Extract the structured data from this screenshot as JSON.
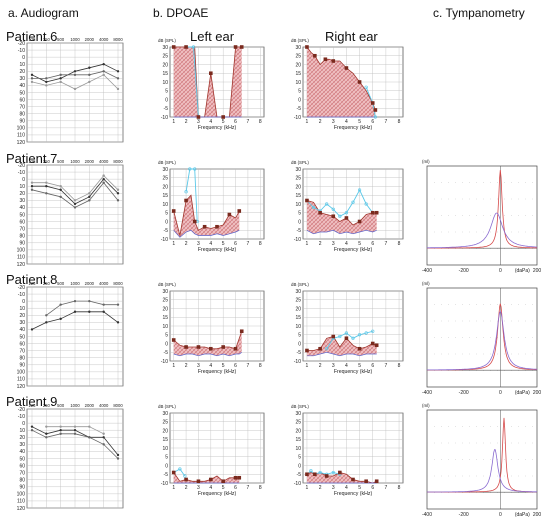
{
  "headers": {
    "audiogram": "a. Audiogram",
    "dpoae": "b. DPOAE",
    "tympanometry": "c. Tympanometry"
  },
  "ear_labels": {
    "left": "Left ear",
    "right": "Right ear"
  },
  "patients": [
    "Patient 6",
    "Patient 7",
    "Patient 8",
    "Patient 9"
  ],
  "colors": {
    "fill": "#e8a9ad",
    "line": "#a0342c",
    "marker": "#7a2a1e",
    "noise": "#5b62c9",
    "cyan": "#5bc8e8",
    "grid": "#bcbcbc",
    "tymp1": "#d64a4a",
    "tymp2": "#8a6bd0"
  },
  "chart_data": [
    {
      "type": "line",
      "name": "audiogram",
      "x_ticks": [
        "125",
        "250",
        "500",
        "1000",
        "2000",
        "4000",
        "8000"
      ],
      "y_ticks": [
        "-20",
        "-10",
        "0",
        "10",
        "20",
        "30",
        "40",
        "50",
        "60",
        "70",
        "80",
        "90",
        "100",
        "110",
        "120"
      ],
      "ylim": [
        -20,
        120
      ],
      "y_inverted": true,
      "patients": [
        {
          "series": [
            {
              "values": [
                25,
                35,
                30,
                20,
                15,
                10,
                20
              ]
            },
            {
              "values": [
                30,
                30,
                25,
                25,
                25,
                20,
                30
              ]
            },
            {
              "values": [
                35,
                40,
                35,
                45,
                35,
                25,
                45
              ]
            }
          ]
        },
        {
          "series": [
            {
              "values": [
                10,
                10,
                15,
                35,
                25,
                0,
                20
              ]
            },
            {
              "values": [
                15,
                20,
                25,
                40,
                30,
                5,
                30
              ]
            },
            {
              "values": [
                5,
                5,
                10,
                30,
                20,
                -5,
                15
              ]
            }
          ]
        },
        {
          "series": [
            {
              "values": [
                40,
                30,
                25,
                15,
                15,
                15,
                30
              ]
            },
            {
              "values": [
                null,
                20,
                5,
                0,
                0,
                5,
                5
              ]
            }
          ]
        },
        {
          "series": [
            {
              "values": [
                5,
                15,
                10,
                10,
                20,
                20,
                45
              ]
            },
            {
              "values": [
                10,
                20,
                15,
                15,
                20,
                30,
                50
              ]
            },
            {
              "values": [
                null,
                5,
                5,
                5,
                5,
                15,
                null
              ]
            }
          ]
        }
      ]
    },
    {
      "type": "area",
      "name": "dpoae",
      "xlabel": "Frequency (kHz)",
      "yunit": "dB (SPL)",
      "x_ticks": [
        1,
        2,
        3,
        4,
        5,
        6,
        7,
        8
      ],
      "y_ticks": [
        30,
        25,
        20,
        15,
        10,
        5,
        0,
        -5,
        -10
      ],
      "ylim": [
        -10,
        30
      ],
      "xlim": [
        0.7,
        8.3
      ],
      "panels": [
        {
          "patient": 0,
          "ear": "left",
          "x": [
            1.0,
            1.5,
            2.0,
            2.7,
            3.0,
            3.5,
            4.0,
            4.5,
            5.0,
            5.5,
            6.0,
            6.3,
            6.5
          ],
          "dp": [
            30,
            30,
            30,
            30,
            -10,
            -10,
            15,
            -10,
            -10,
            -10,
            30,
            30,
            30
          ],
          "noise": [
            -10,
            -10,
            -10,
            -10,
            -10,
            -10,
            -10,
            -10,
            -10,
            -10,
            -10,
            -10,
            -10
          ],
          "cyan": [
            [
              2.0,
              30
            ],
            [
              2.6,
              30
            ],
            [
              3.0,
              -10
            ]
          ]
        },
        {
          "patient": 0,
          "ear": "right",
          "x": [
            1.0,
            1.3,
            1.6,
            2.0,
            2.4,
            2.7,
            3.0,
            3.5,
            4.0,
            4.5,
            5.0,
            5.5,
            6.0,
            6.2
          ],
          "dp": [
            30,
            27,
            25,
            20,
            23,
            23,
            22,
            22,
            18,
            15,
            10,
            5,
            -2,
            -6
          ],
          "noise": [
            -10,
            -10,
            -10,
            -10,
            -10,
            -10,
            -10,
            -10,
            -10,
            -10,
            -10,
            -10,
            -10,
            -10
          ],
          "cyan": [
            [
              5.5,
              7
            ],
            [
              6.0,
              -2
            ],
            [
              6.2,
              -10
            ]
          ]
        },
        {
          "patient": 1,
          "ear": "left",
          "x": [
            1.0,
            1.5,
            2.0,
            2.4,
            2.7,
            3.0,
            3.5,
            4.0,
            4.5,
            5.0,
            5.5,
            6.0,
            6.3
          ],
          "dp": [
            6,
            -8,
            12,
            15,
            0,
            -5,
            -3,
            -4,
            -3,
            -2,
            4,
            2,
            6
          ],
          "noise": [
            -5,
            -9,
            -6,
            -5,
            -7,
            -8,
            -8,
            -8,
            -7,
            -8,
            -7,
            -6,
            -5
          ],
          "cyan": [
            [
              2.0,
              17
            ],
            [
              2.3,
              30
            ],
            [
              2.7,
              30
            ],
            [
              2.9,
              0
            ]
          ]
        },
        {
          "patient": 1,
          "ear": "right",
          "x": [
            1.0,
            1.5,
            2.0,
            2.5,
            3.0,
            3.5,
            4.0,
            4.5,
            5.0,
            5.5,
            6.0,
            6.3
          ],
          "dp": [
            12,
            11,
            5,
            4,
            3,
            0,
            2,
            -2,
            0,
            4,
            5,
            5
          ],
          "noise": [
            -5,
            -7,
            -6,
            -6,
            -5,
            -7,
            -6,
            -7,
            -6,
            -5,
            -6,
            -5
          ],
          "cyan": [
            [
              1.0,
              12
            ],
            [
              1.5,
              8
            ],
            [
              2.0,
              6
            ],
            [
              2.5,
              10
            ],
            [
              3.0,
              7
            ],
            [
              3.5,
              3
            ],
            [
              4.0,
              5
            ],
            [
              4.5,
              11
            ],
            [
              5.0,
              18
            ],
            [
              5.5,
              10
            ],
            [
              6.0,
              5
            ]
          ]
        },
        {
          "patient": 2,
          "ear": "left",
          "x": [
            1.0,
            1.5,
            2.0,
            2.5,
            3.0,
            3.5,
            4.0,
            4.5,
            5.0,
            5.5,
            6.0,
            6.3,
            6.5
          ],
          "dp": [
            2,
            -1,
            -2,
            -2,
            -2,
            -2,
            -3,
            -3,
            -2,
            -2,
            -3,
            3,
            7
          ],
          "noise": [
            -6,
            -7,
            -6,
            -6,
            -7,
            -6,
            -6,
            -7,
            -6,
            -7,
            -6,
            -6,
            -5
          ],
          "cyan": []
        },
        {
          "patient": 2,
          "ear": "right",
          "x": [
            1.0,
            1.5,
            2.0,
            2.5,
            3.0,
            3.5,
            4.0,
            4.5,
            5.0,
            5.5,
            6.0,
            6.3
          ],
          "dp": [
            -4,
            -4,
            -3,
            3,
            4,
            -2,
            3,
            -1,
            -3,
            -2,
            0,
            -1
          ],
          "noise": [
            -7,
            -7,
            -6,
            -5,
            -6,
            -7,
            -6,
            -6,
            -7,
            -6,
            -6,
            -6
          ],
          "cyan": [
            [
              2.5,
              -3
            ],
            [
              3.0,
              3
            ],
            [
              3.5,
              4
            ],
            [
              4.0,
              6
            ],
            [
              4.5,
              3
            ],
            [
              5.0,
              5
            ],
            [
              5.5,
              6
            ],
            [
              6.0,
              7
            ]
          ]
        },
        {
          "patient": 3,
          "ear": "left",
          "x": [
            1.0,
            1.5,
            2.0,
            2.5,
            3.0,
            3.5,
            4.0,
            4.5,
            5.0,
            5.5,
            6.0,
            6.3
          ],
          "dp": [
            -4,
            -9,
            -8,
            -9,
            -9,
            -9,
            -8,
            -6,
            -9,
            -7,
            -7,
            -7
          ],
          "noise": [
            -10,
            -10,
            -10,
            -10,
            -10,
            -10,
            -10,
            -10,
            -10,
            -10,
            -10,
            -10
          ],
          "cyan": [
            [
              1.0,
              -4
            ],
            [
              1.5,
              -2
            ],
            [
              1.9,
              -6
            ]
          ]
        },
        {
          "patient": 3,
          "ear": "right",
          "x": [
            1.0,
            1.3,
            1.6,
            2.0,
            2.5,
            3.0,
            3.5,
            4.0,
            4.5,
            5.0,
            5.5,
            6.0,
            6.3
          ],
          "dp": [
            -5,
            -4,
            -5,
            -4,
            -6,
            -6,
            -4,
            -5,
            -8,
            -9,
            -9,
            -10,
            -9
          ],
          "noise": [
            -10,
            -10,
            -10,
            -10,
            -10,
            -10,
            -10,
            -10,
            -10,
            -10,
            -10,
            -10,
            -10
          ],
          "cyan": [
            [
              1.0,
              -5
            ],
            [
              1.3,
              -3
            ],
            [
              1.6,
              -5
            ],
            [
              2.0,
              -4
            ],
            [
              2.5,
              -5
            ],
            [
              3.0,
              -4
            ],
            [
              3.5,
              -5
            ]
          ]
        }
      ]
    },
    {
      "type": "line",
      "name": "tympanometry",
      "xlabel": "(daPa)",
      "yunit": "(ml)",
      "x_ticks": [
        -400,
        -200,
        0,
        200
      ],
      "xlim": [
        -400,
        200
      ],
      "panels": [
        {
          "patient": 1,
          "peaks": [
            {
              "x": 0,
              "h": 1.0,
              "w": 12
            },
            {
              "x": -20,
              "h": 0.45,
              "w": 40
            }
          ]
        },
        {
          "patient": 2,
          "peaks": [
            {
              "x": 0,
              "h": 0.85,
              "w": 18
            },
            {
              "x": 0,
              "h": 0.75,
              "w": 25
            }
          ]
        },
        {
          "patient": 3,
          "peaks": [
            {
              "x": 20,
              "h": 0.95,
              "w": 10
            },
            {
              "x": -30,
              "h": 0.55,
              "w": 20
            }
          ]
        }
      ]
    }
  ]
}
